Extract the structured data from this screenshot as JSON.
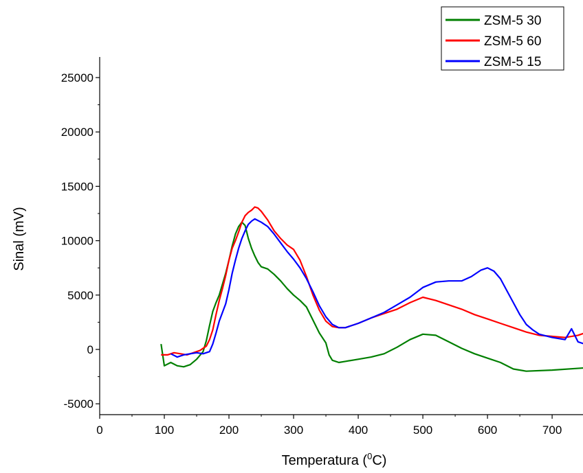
{
  "chart_data": {
    "type": "line",
    "title": "",
    "xlabel": "Temperatura (",
    "xlabel_sup": "0",
    "xlabel_unit": "C)",
    "ylabel": "Sinal (mV)",
    "xlim": [
      0,
      750
    ],
    "ylim": [
      -6000,
      27000
    ],
    "xticks": [
      0,
      100,
      200,
      300,
      400,
      500,
      600,
      700
    ],
    "yticks": [
      -5000,
      0,
      5000,
      10000,
      15000,
      20000,
      25000
    ],
    "grid": false,
    "legend_position": "top-right",
    "series": [
      {
        "name": "ZSM-5 30",
        "color": "#007F00",
        "points": [
          [
            95,
            500
          ],
          [
            100,
            -1500
          ],
          [
            110,
            -1200
          ],
          [
            120,
            -1500
          ],
          [
            130,
            -1600
          ],
          [
            140,
            -1400
          ],
          [
            150,
            -900
          ],
          [
            160,
            -200
          ],
          [
            165,
            800
          ],
          [
            170,
            2200
          ],
          [
            175,
            3500
          ],
          [
            180,
            4300
          ],
          [
            185,
            5000
          ],
          [
            190,
            6000
          ],
          [
            195,
            7000
          ],
          [
            200,
            8200
          ],
          [
            205,
            9500
          ],
          [
            210,
            10600
          ],
          [
            215,
            11300
          ],
          [
            220,
            11700
          ],
          [
            225,
            11400
          ],
          [
            230,
            10200
          ],
          [
            235,
            9300
          ],
          [
            240,
            8600
          ],
          [
            245,
            8000
          ],
          [
            250,
            7600
          ],
          [
            260,
            7400
          ],
          [
            270,
            6900
          ],
          [
            280,
            6300
          ],
          [
            290,
            5600
          ],
          [
            300,
            5000
          ],
          [
            310,
            4500
          ],
          [
            320,
            3900
          ],
          [
            330,
            2700
          ],
          [
            340,
            1500
          ],
          [
            350,
            600
          ],
          [
            355,
            -500
          ],
          [
            360,
            -1000
          ],
          [
            370,
            -1200
          ],
          [
            380,
            -1100
          ],
          [
            400,
            -900
          ],
          [
            420,
            -700
          ],
          [
            440,
            -400
          ],
          [
            460,
            200
          ],
          [
            480,
            900
          ],
          [
            500,
            1400
          ],
          [
            520,
            1300
          ],
          [
            540,
            700
          ],
          [
            560,
            100
          ],
          [
            580,
            -400
          ],
          [
            600,
            -800
          ],
          [
            620,
            -1200
          ],
          [
            640,
            -1800
          ],
          [
            660,
            -2000
          ],
          [
            700,
            -1900
          ],
          [
            750,
            -1700
          ]
        ]
      },
      {
        "name": "ZSM-5 60",
        "color": "#FF0000",
        "points": [
          [
            95,
            -500
          ],
          [
            105,
            -500
          ],
          [
            115,
            -300
          ],
          [
            125,
            -400
          ],
          [
            135,
            -500
          ],
          [
            145,
            -300
          ],
          [
            155,
            -100
          ],
          [
            165,
            300
          ],
          [
            170,
            900
          ],
          [
            175,
            1800
          ],
          [
            180,
            3200
          ],
          [
            185,
            4500
          ],
          [
            190,
            5600
          ],
          [
            195,
            6800
          ],
          [
            200,
            8200
          ],
          [
            205,
            9300
          ],
          [
            210,
            10000
          ],
          [
            215,
            10800
          ],
          [
            220,
            11700
          ],
          [
            225,
            12300
          ],
          [
            230,
            12600
          ],
          [
            235,
            12800
          ],
          [
            240,
            13100
          ],
          [
            245,
            13000
          ],
          [
            250,
            12700
          ],
          [
            255,
            12300
          ],
          [
            260,
            11900
          ],
          [
            265,
            11400
          ],
          [
            270,
            10900
          ],
          [
            280,
            10200
          ],
          [
            290,
            9600
          ],
          [
            300,
            9200
          ],
          [
            310,
            8200
          ],
          [
            320,
            6700
          ],
          [
            330,
            5000
          ],
          [
            340,
            3600
          ],
          [
            350,
            2600
          ],
          [
            360,
            2100
          ],
          [
            370,
            2000
          ],
          [
            380,
            2000
          ],
          [
            400,
            2400
          ],
          [
            420,
            2900
          ],
          [
            440,
            3300
          ],
          [
            460,
            3700
          ],
          [
            480,
            4300
          ],
          [
            500,
            4800
          ],
          [
            520,
            4500
          ],
          [
            540,
            4100
          ],
          [
            560,
            3700
          ],
          [
            580,
            3200
          ],
          [
            600,
            2800
          ],
          [
            620,
            2400
          ],
          [
            640,
            2000
          ],
          [
            660,
            1600
          ],
          [
            680,
            1300
          ],
          [
            700,
            1200
          ],
          [
            720,
            1100
          ],
          [
            740,
            1300
          ],
          [
            750,
            1500
          ]
        ]
      },
      {
        "name": "ZSM-5 15",
        "color": "#0000FF",
        "points": [
          [
            110,
            -400
          ],
          [
            120,
            -700
          ],
          [
            130,
            -500
          ],
          [
            140,
            -400
          ],
          [
            150,
            -300
          ],
          [
            160,
            -400
          ],
          [
            170,
            -200
          ],
          [
            175,
            500
          ],
          [
            180,
            1500
          ],
          [
            185,
            2600
          ],
          [
            190,
            3400
          ],
          [
            195,
            4200
          ],
          [
            200,
            5500
          ],
          [
            205,
            7000
          ],
          [
            210,
            8200
          ],
          [
            215,
            9300
          ],
          [
            220,
            10200
          ],
          [
            225,
            10900
          ],
          [
            230,
            11500
          ],
          [
            235,
            11800
          ],
          [
            240,
            12000
          ],
          [
            250,
            11700
          ],
          [
            260,
            11300
          ],
          [
            270,
            10600
          ],
          [
            280,
            9800
          ],
          [
            290,
            9000
          ],
          [
            300,
            8300
          ],
          [
            310,
            7500
          ],
          [
            320,
            6500
          ],
          [
            330,
            5300
          ],
          [
            340,
            4000
          ],
          [
            350,
            3000
          ],
          [
            360,
            2300
          ],
          [
            370,
            2000
          ],
          [
            380,
            2000
          ],
          [
            400,
            2400
          ],
          [
            420,
            2900
          ],
          [
            440,
            3400
          ],
          [
            460,
            4100
          ],
          [
            480,
            4800
          ],
          [
            500,
            5700
          ],
          [
            520,
            6200
          ],
          [
            540,
            6300
          ],
          [
            560,
            6300
          ],
          [
            575,
            6700
          ],
          [
            590,
            7300
          ],
          [
            600,
            7500
          ],
          [
            610,
            7200
          ],
          [
            620,
            6500
          ],
          [
            630,
            5400
          ],
          [
            640,
            4300
          ],
          [
            650,
            3200
          ],
          [
            660,
            2300
          ],
          [
            670,
            1800
          ],
          [
            680,
            1400
          ],
          [
            700,
            1100
          ],
          [
            720,
            900
          ],
          [
            730,
            1900
          ],
          [
            740,
            700
          ],
          [
            750,
            500
          ]
        ]
      }
    ]
  }
}
